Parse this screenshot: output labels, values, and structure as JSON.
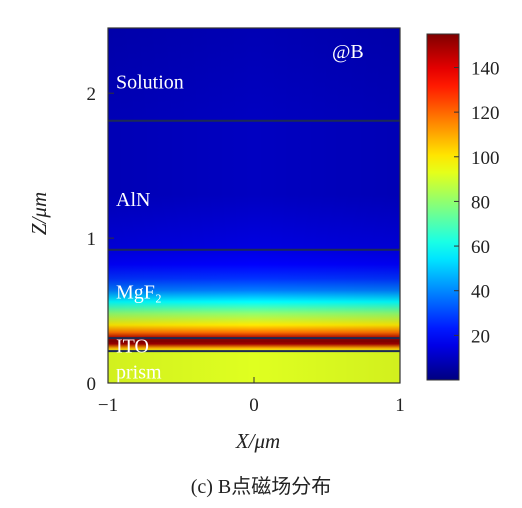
{
  "chart_data": {
    "type": "heatmap",
    "marker_label": "@B",
    "xlabel": "X/μm",
    "ylabel": "Z/μm",
    "xlim": [
      -1,
      1
    ],
    "ylim": [
      0,
      2.45
    ],
    "x_ticks": [
      {
        "value": -1,
        "label": "−1"
      },
      {
        "value": 0,
        "label": "0"
      },
      {
        "value": 1,
        "label": "1"
      }
    ],
    "y_ticks": [
      {
        "value": 0,
        "label": "0"
      },
      {
        "value": 1,
        "label": "1"
      },
      {
        "value": 2,
        "label": "2"
      }
    ],
    "colorbar": {
      "range": [
        0,
        155
      ],
      "ticks": [
        {
          "value": 20,
          "label": "20"
        },
        {
          "value": 40,
          "label": "40"
        },
        {
          "value": 60,
          "label": "60"
        },
        {
          "value": 80,
          "label": "80"
        },
        {
          "value": 100,
          "label": "100"
        },
        {
          "value": 120,
          "label": "120"
        },
        {
          "value": 140,
          "label": "140"
        }
      ]
    },
    "layers": [
      {
        "name": "Solution",
        "z_bottom": 1.81,
        "z_top": 2.45,
        "label_z": 2.08
      },
      {
        "name": "AlN",
        "z_bottom": 0.92,
        "z_top": 1.81,
        "label_z": 1.27
      },
      {
        "name": "MgF₂",
        "z_bottom": 0.31,
        "z_top": 0.92,
        "label_z": 0.63
      },
      {
        "name": "ITO",
        "z_bottom": 0.22,
        "z_top": 0.31,
        "label_z": 0.26
      },
      {
        "name": "prism",
        "z_bottom": 0.0,
        "z_top": 0.22,
        "label_z": 0.08
      }
    ],
    "field_profile": [
      {
        "z": 0.0,
        "value": 92
      },
      {
        "z": 0.22,
        "value": 92
      },
      {
        "z": 0.24,
        "value": 108
      },
      {
        "z": 0.27,
        "value": 150
      },
      {
        "z": 0.29,
        "value": 158
      },
      {
        "z": 0.31,
        "value": 148
      },
      {
        "z": 0.35,
        "value": 118
      },
      {
        "z": 0.4,
        "value": 100
      },
      {
        "z": 0.48,
        "value": 80
      },
      {
        "z": 0.56,
        "value": 58
      },
      {
        "z": 0.64,
        "value": 38
      },
      {
        "z": 0.72,
        "value": 27
      },
      {
        "z": 0.82,
        "value": 19
      },
      {
        "z": 0.92,
        "value": 15
      },
      {
        "z": 1.3,
        "value": 10
      },
      {
        "z": 1.81,
        "value": 10
      },
      {
        "z": 2.45,
        "value": 8
      }
    ]
  },
  "caption": "(c) B点磁场分布"
}
